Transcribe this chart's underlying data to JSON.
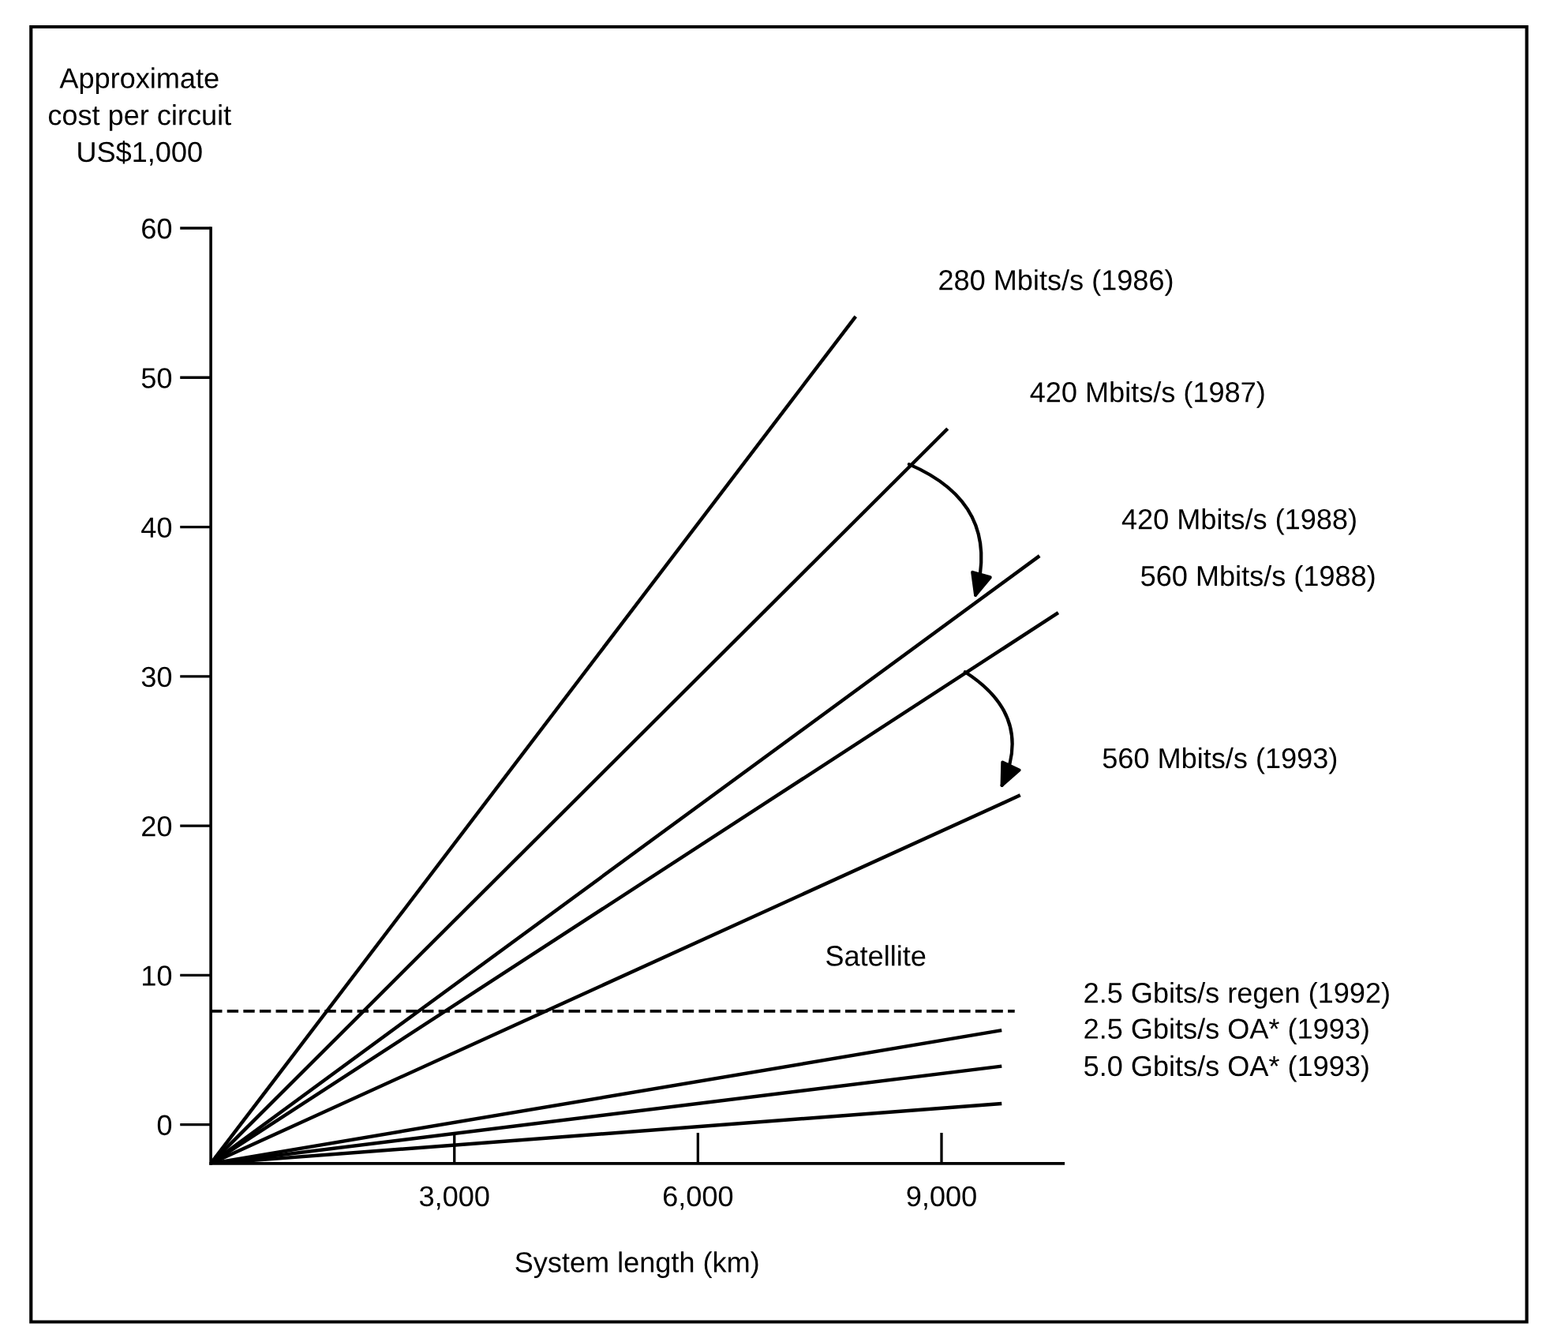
{
  "chart_data": {
    "type": "line",
    "xlabel": "System length (km)",
    "ylabel": "Approximate\ncost per circuit\nUS$1,000",
    "series": [
      {
        "name": "280 Mbits/s (1986)",
        "color": "#000000",
        "x": [
          0,
          7930
        ],
        "values": [
          -2.6,
          54.0
        ]
      },
      {
        "name": "420 Mbits/s (1987)",
        "color": "#000000",
        "x": [
          0,
          9060
        ],
        "values": [
          -2.6,
          46.5
        ]
      },
      {
        "name": "420 Mbits/s (1988)",
        "color": "#000000",
        "x": [
          0,
          10190
        ],
        "values": [
          -2.6,
          38.0
        ]
      },
      {
        "name": "560 Mbits/s (1988)",
        "color": "#000000",
        "x": [
          0,
          10420
        ],
        "values": [
          -2.6,
          34.2
        ]
      },
      {
        "name": "560 Mbits/s (1993)",
        "color": "#000000",
        "x": [
          0,
          9950
        ],
        "values": [
          -2.6,
          22.0
        ]
      },
      {
        "name": "2.5 Gbits/s regen (1992)",
        "color": "#000000",
        "x": [
          0,
          9720
        ],
        "values": [
          -2.6,
          6.3
        ]
      },
      {
        "name": "2.5 Gbits/s OA* (1993)",
        "color": "#000000",
        "x": [
          0,
          9720
        ],
        "values": [
          -2.6,
          3.9
        ]
      },
      {
        "name": "5.0 Gbits/s OA* (1993)",
        "color": "#000000",
        "x": [
          0,
          9720
        ],
        "values": [
          -2.6,
          1.4
        ]
      }
    ],
    "ref_lines": [
      {
        "axis": "y",
        "value": 7.6,
        "label": "Satellite",
        "color": "#000000",
        "line_style": "dashed"
      }
    ],
    "xlim": [
      0,
      10500
    ],
    "xticks": [
      {
        "value": 3000,
        "label": "3,000"
      },
      {
        "value": 6000,
        "label": "6,000"
      },
      {
        "value": 9000,
        "label": "9,000"
      }
    ],
    "ylim": [
      -2.6,
      60
    ],
    "yticks": [
      0,
      10,
      20,
      30,
      40,
      50,
      60
    ],
    "grid": false,
    "legend": false,
    "marker": "none",
    "line_style": "solid"
  }
}
